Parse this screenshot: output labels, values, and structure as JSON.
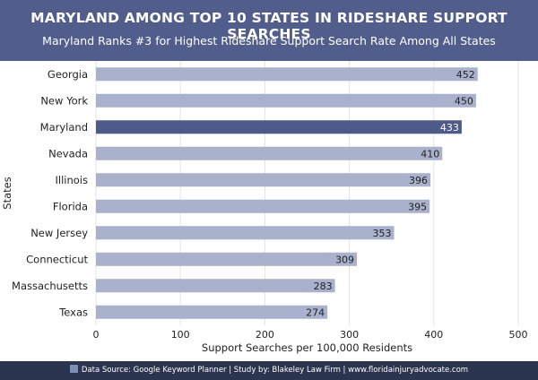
{
  "header": {
    "title": "MARYLAND AMONG TOP 10 STATES IN RIDESHARE SUPPORT SEARCHES",
    "subtitle": "Maryland Ranks #3 for Highest Rideshare Support Search Rate Among All States"
  },
  "footer": {
    "icon": "chart-icon",
    "text": "Data Source: Google Keyword Planner | Study by: Blakeley Law Firm | www.floridainjuryadvocate.com"
  },
  "colors": {
    "bar": "#a9b1cc",
    "highlight": "#4e5a88",
    "header": "#515e8b",
    "footer": "#2c3550"
  },
  "chart_data": {
    "type": "bar",
    "orientation": "horizontal",
    "categories": [
      "Georgia",
      "New York",
      "Maryland",
      "Nevada",
      "Illinois",
      "Florida",
      "New Jersey",
      "Connecticut",
      "Massachusetts",
      "Texas"
    ],
    "values": [
      452,
      450,
      433,
      410,
      396,
      395,
      353,
      309,
      283,
      274
    ],
    "highlight": "Maryland",
    "xlabel": "Support Searches per 100,000 Residents",
    "ylabel": "States",
    "xlim": [
      0,
      500
    ],
    "xticks": [
      0,
      100,
      200,
      300,
      400,
      500
    ],
    "grid": true,
    "data_labels": true
  }
}
